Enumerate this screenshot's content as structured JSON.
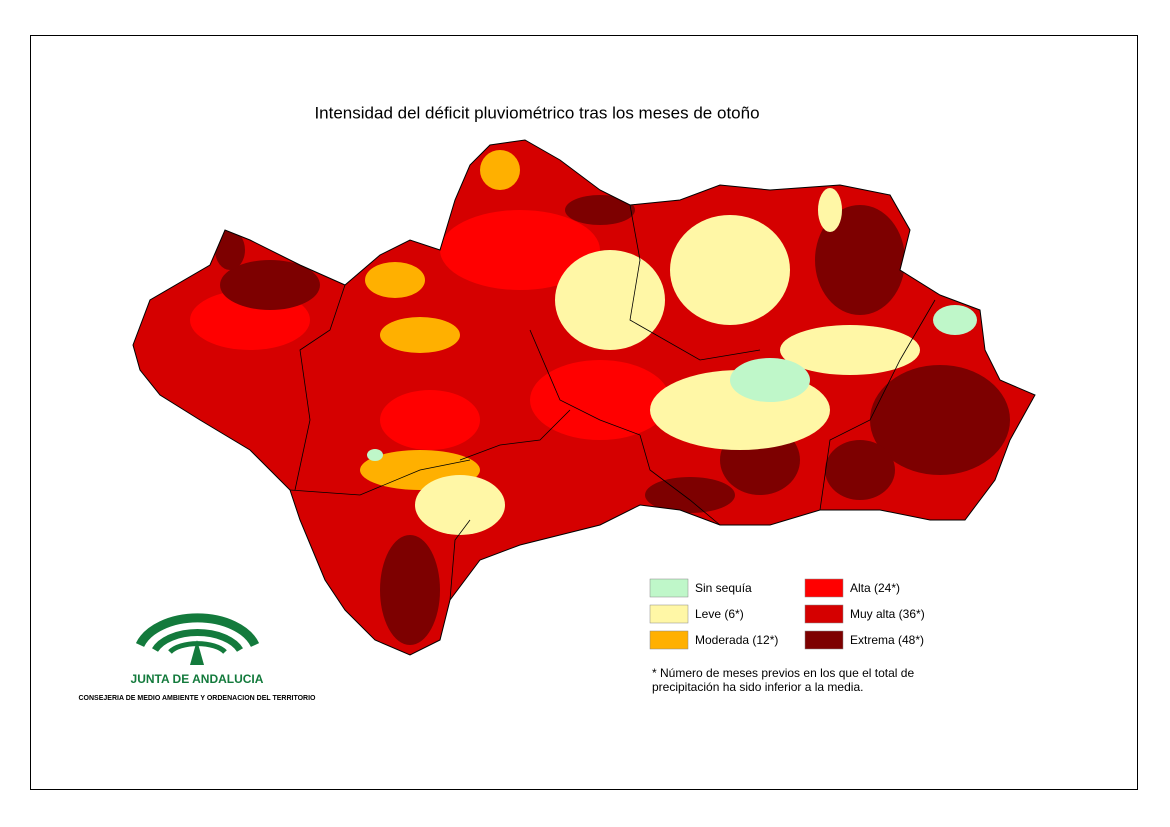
{
  "title": "Intensidad del déficit pluviométrico tras los meses de otoño",
  "legend": [
    {
      "label": "Sin sequía",
      "color": "#bff7c9"
    },
    {
      "label": "Leve (6*)",
      "color": "#fff7a6"
    },
    {
      "label": "Moderada (12*)",
      "color": "#ffb000"
    },
    {
      "label": "Alta (24*)",
      "color": "#ff0000"
    },
    {
      "label": "Muy alta (36*)",
      "color": "#d50000"
    },
    {
      "label": "Extrema (48*)",
      "color": "#7d0000"
    }
  ],
  "footnote": [
    "* Número de meses previos en los que el total de",
    "precipitación ha sido inferior a la media."
  ],
  "logo": {
    "name": "JUNTA DE ANDALUCIA",
    "department": "CONSEJERIA DE MEDIO AMBIENTE Y ORDENACION DEL TERRITORIO"
  }
}
